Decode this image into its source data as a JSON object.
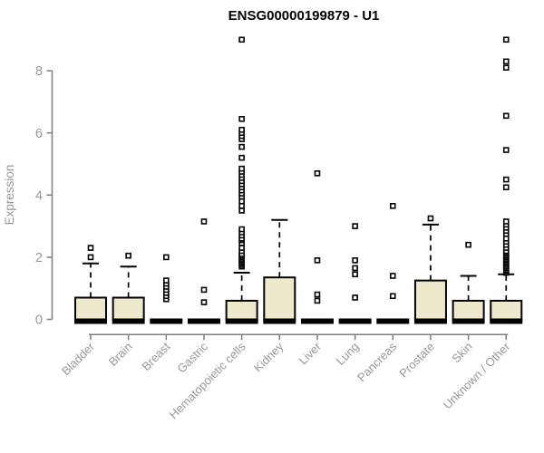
{
  "chart_data": {
    "type": "boxplot",
    "title": "ENSG00000199879 - U1",
    "xlabel": "",
    "ylabel": "Expression",
    "ylim": [
      -0.35,
      9.35
    ],
    "yticks": [
      0,
      2,
      4,
      6,
      8
    ],
    "grid": false,
    "legend": "none",
    "colors": {
      "box_fill": "#EEE8CD",
      "box_stroke": "#000000",
      "median": "#000000",
      "whisker": "#000000",
      "outlier_stroke": "#000000",
      "outlier_fill": "#ffffff",
      "axis_line": "#7d7d7d",
      "axis_text": "#989898",
      "title_text": "#000000",
      "background": "#ffffff"
    },
    "categories": [
      "Bladder",
      "Brain",
      "Breast",
      "Gastric",
      "Hematopoietic cells",
      "Kidney",
      "Liver",
      "Lung",
      "Pancreas",
      "Prostate",
      "Skin",
      "Unknown / Other"
    ],
    "boxes": [
      {
        "label": "Bladder",
        "q1": 0,
        "median": 0,
        "q3": 0.7,
        "whisker_low": 0,
        "whisker_high": 1.8,
        "outliers": [
          2.0,
          2.3
        ]
      },
      {
        "label": "Brain",
        "q1": 0,
        "median": 0,
        "q3": 0.7,
        "whisker_low": 0,
        "whisker_high": 1.7,
        "outliers": [
          2.05
        ]
      },
      {
        "label": "Breast",
        "q1": 0,
        "median": 0,
        "q3": 0,
        "whisker_low": 0,
        "whisker_high": 0,
        "outliers": [
          0.65,
          0.75,
          0.85,
          0.95,
          1.05,
          1.15,
          1.25,
          2.0
        ]
      },
      {
        "label": "Gastric",
        "q1": 0,
        "median": 0,
        "q3": 0,
        "whisker_low": 0,
        "whisker_high": 0,
        "outliers": [
          0.55,
          0.95,
          3.15
        ]
      },
      {
        "label": "Hematopoietic cells",
        "q1": 0,
        "median": 0,
        "q3": 0.6,
        "whisker_low": 0,
        "whisker_high": 1.5,
        "outliers": [
          1.7,
          1.75,
          1.8,
          1.85,
          1.9,
          1.95,
          2.0,
          2.05,
          2.1,
          2.2,
          2.3,
          2.45,
          2.55,
          2.6,
          2.7,
          2.8,
          2.9,
          3.5,
          3.65,
          3.8,
          3.95,
          4.05,
          4.15,
          4.25,
          4.35,
          4.45,
          4.55,
          4.65,
          4.75,
          4.85,
          5.2,
          5.55,
          5.8,
          5.9,
          6.0,
          6.1,
          6.45,
          9.0
        ]
      },
      {
        "label": "Kidney",
        "q1": 0,
        "median": 0,
        "q3": 1.35,
        "whisker_low": 0,
        "whisker_high": 3.2,
        "outliers": []
      },
      {
        "label": "Liver",
        "q1": 0,
        "median": 0,
        "q3": 0,
        "whisker_low": 0,
        "whisker_high": 0,
        "outliers": [
          0.6,
          0.8,
          1.9,
          4.7
        ]
      },
      {
        "label": "Lung",
        "q1": 0,
        "median": 0,
        "q3": 0,
        "whisker_low": 0,
        "whisker_high": 0,
        "outliers": [
          0.7,
          1.45,
          1.65,
          1.9,
          3.0
        ]
      },
      {
        "label": "Pancreas",
        "q1": 0,
        "median": 0,
        "q3": 0,
        "whisker_low": 0,
        "whisker_high": 0,
        "outliers": [
          0.75,
          1.4,
          3.65
        ]
      },
      {
        "label": "Prostate",
        "q1": 0,
        "median": 0,
        "q3": 1.25,
        "whisker_low": 0,
        "whisker_high": 3.05,
        "outliers": [
          3.25
        ]
      },
      {
        "label": "Skin",
        "q1": 0,
        "median": 0,
        "q3": 0.6,
        "whisker_low": 0,
        "whisker_high": 1.4,
        "outliers": [
          2.4
        ]
      },
      {
        "label": "Unknown / Other",
        "q1": 0,
        "median": 0,
        "q3": 0.6,
        "whisker_low": 0,
        "whisker_high": 1.45,
        "outliers": [
          1.5,
          1.55,
          1.6,
          1.65,
          1.7,
          1.75,
          1.8,
          1.85,
          1.9,
          1.95,
          2.0,
          2.05,
          2.1,
          2.15,
          2.2,
          2.3,
          2.4,
          2.5,
          2.6,
          2.75,
          2.85,
          2.95,
          3.05,
          3.15,
          4.25,
          4.5,
          5.45,
          6.55,
          8.1,
          8.3,
          9.0
        ]
      }
    ]
  }
}
